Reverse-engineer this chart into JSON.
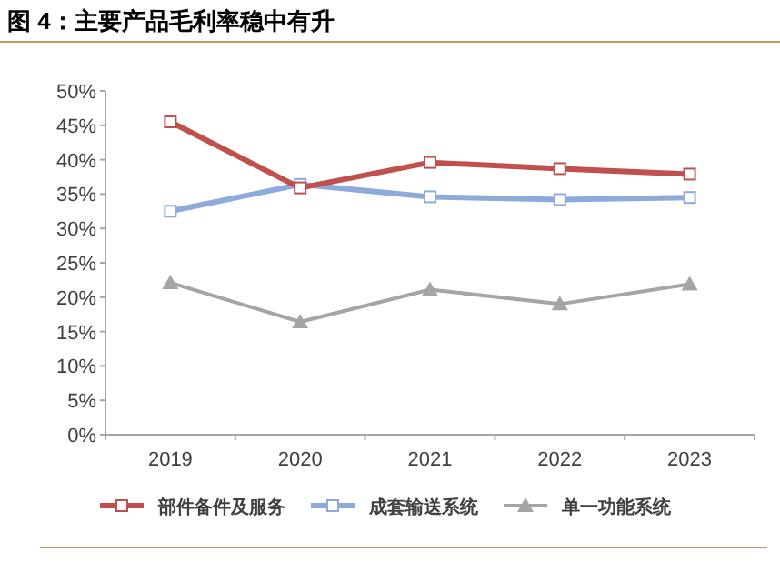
{
  "chart_data": {
    "type": "line",
    "title": "图 4：主要产品毛利率稳中有升",
    "categories": [
      "2019",
      "2020",
      "2021",
      "2022",
      "2023"
    ],
    "series": [
      {
        "name": "部件备件及服务",
        "color": "#c0504d",
        "marker": "square",
        "values": [
          45.5,
          35.9,
          39.6,
          38.7,
          37.9
        ]
      },
      {
        "name": "成套输送系统",
        "color": "#8eaadb",
        "marker": "square",
        "values": [
          32.5,
          36.4,
          34.6,
          34.2,
          34.5
        ]
      },
      {
        "name": "单一功能系统",
        "color": "#a5a5a5",
        "marker": "triangle",
        "values": [
          22.1,
          16.4,
          21.1,
          19.0,
          21.9
        ]
      }
    ],
    "ylim": [
      0,
      50
    ],
    "yticks": [
      {
        "value": 0,
        "label": "0%"
      },
      {
        "value": 5,
        "label": "5%"
      },
      {
        "value": 10,
        "label": "10%"
      },
      {
        "value": 15,
        "label": "15%"
      },
      {
        "value": 20,
        "label": "20%"
      },
      {
        "value": 25,
        "label": "25%"
      },
      {
        "value": 30,
        "label": "30%"
      },
      {
        "value": 35,
        "label": "35%"
      },
      {
        "value": 40,
        "label": "40%"
      },
      {
        "value": 45,
        "label": "45%"
      },
      {
        "value": 50,
        "label": "50%"
      }
    ],
    "legend": "bottom"
  }
}
